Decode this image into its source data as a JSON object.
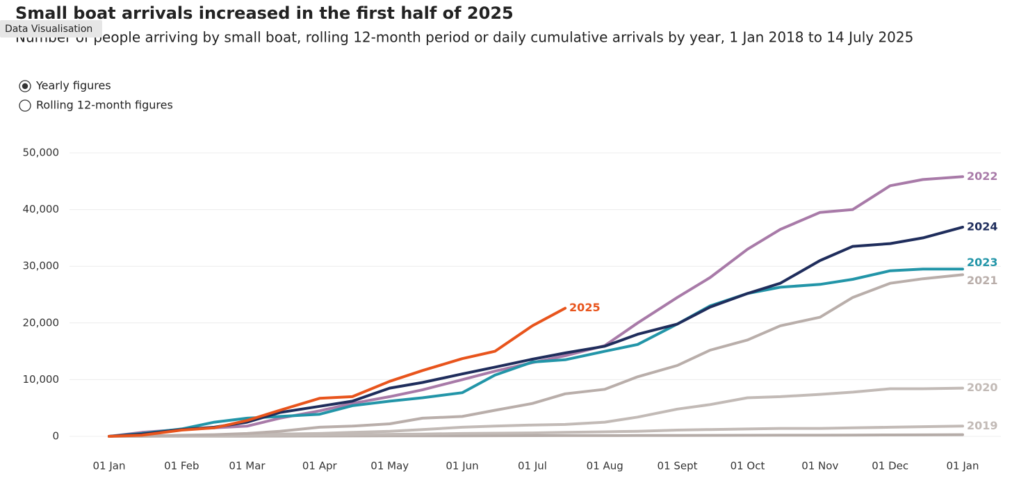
{
  "chart_data": {
    "type": "line",
    "title": "Small boat arrivals increased in the first half of 2025",
    "tag": "Data Visualisation",
    "subtitle": "Number of people arriving by small boat, rolling 12-month period or daily cumulative arrivals by year, 1 Jan 2018 to 14 July 2025",
    "options": [
      "Yearly figures",
      "Rolling 12-month figures"
    ],
    "selected_option": 0,
    "x": [
      0,
      14,
      31,
      45,
      59,
      73,
      90,
      104,
      120,
      134,
      151,
      165,
      181,
      195,
      212,
      226,
      243,
      257,
      273,
      287,
      304,
      318,
      334,
      348,
      365
    ],
    "xlim": [
      0,
      365
    ],
    "xticks": [
      {
        "value": 0,
        "label": "01 Jan"
      },
      {
        "value": 31,
        "label": "01 Feb"
      },
      {
        "value": 59,
        "label": "01 Mar"
      },
      {
        "value": 90,
        "label": "01 Apr"
      },
      {
        "value": 120,
        "label": "01 May"
      },
      {
        "value": 151,
        "label": "01 Jun"
      },
      {
        "value": 181,
        "label": "01 Jul"
      },
      {
        "value": 212,
        "label": "01 Aug"
      },
      {
        "value": 243,
        "label": "01 Sept"
      },
      {
        "value": 273,
        "label": "01 Oct"
      },
      {
        "value": 304,
        "label": "01 Nov"
      },
      {
        "value": 334,
        "label": "01 Dec"
      },
      {
        "value": 365,
        "label": "01 Jan"
      }
    ],
    "ylim": [
      0,
      50000
    ],
    "yticks": [
      0,
      {
        "value": 10000,
        "label": "10,000"
      },
      {
        "value": 20000,
        "label": "20,000"
      },
      {
        "value": 30000,
        "label": "30,000"
      },
      {
        "value": 40000,
        "label": "40,000"
      },
      {
        "value": 50000,
        "label": "50,000"
      }
    ],
    "grid": true,
    "series": [
      {
        "color": "#b5aca8",
        "values": [
          0,
          10,
          20,
          30,
          40,
          50,
          60,
          70,
          80,
          90,
          100,
          110,
          120,
          130,
          140,
          150,
          160,
          170,
          180,
          190,
          200,
          220,
          240,
          260,
          300
        ]
      },
      {
        "name": "2019",
        "color": "#c2bab6",
        "values": [
          0,
          30,
          50,
          100,
          150,
          200,
          250,
          300,
          350,
          400,
          500,
          550,
          600,
          700,
          800,
          900,
          1100,
          1200,
          1300,
          1400,
          1400,
          1500,
          1600,
          1700,
          1800
        ]
      },
      {
        "name": "2020",
        "color": "#c2bab6",
        "values": [
          0,
          50,
          100,
          200,
          300,
          400,
          500,
          700,
          900,
          1200,
          1600,
          1800,
          2000,
          2100,
          2500,
          3400,
          4800,
          5600,
          6800,
          7000,
          7400,
          7800,
          8400,
          8400,
          8500
        ]
      },
      {
        "name": "2021",
        "color": "#b9aeaa",
        "values": [
          0,
          50,
          200,
          300,
          500,
          900,
          1600,
          1800,
          2200,
          3200,
          3500,
          4600,
          5800,
          7500,
          8300,
          10500,
          12500,
          15200,
          17000,
          19500,
          21000,
          24500,
          27000,
          27800,
          28500
        ]
      },
      {
        "name": "2022",
        "color": "#a87aa8",
        "values": [
          0,
          700,
          1200,
          1500,
          1800,
          3200,
          4500,
          5800,
          7000,
          8200,
          10000,
          11500,
          13000,
          14200,
          16000,
          20000,
          24500,
          28000,
          33000,
          36500,
          39500,
          40000,
          44200,
          45300,
          45800
        ]
      },
      {
        "name": "2023",
        "color": "#2295a8",
        "values": [
          0,
          500,
          1300,
          2500,
          3200,
          3500,
          3900,
          5400,
          6200,
          6800,
          7700,
          10800,
          13100,
          13500,
          15000,
          16200,
          19800,
          23000,
          25200,
          26300,
          26800,
          27700,
          29200,
          29500,
          29500
        ]
      },
      {
        "name": "2024",
        "color": "#1f2d5c",
        "values": [
          0,
          400,
          1200,
          1600,
          2500,
          4200,
          5300,
          6200,
          8500,
          9500,
          11000,
          12200,
          13600,
          14700,
          15900,
          18000,
          19800,
          22800,
          25200,
          27000,
          31000,
          33500,
          34000,
          35000,
          36900
        ]
      },
      {
        "name": "2025",
        "color": "#e8541c",
        "values": [
          0,
          200,
          1100,
          1500,
          2800,
          4600,
          6700,
          7000,
          9700,
          11600,
          13700,
          15000,
          19500,
          22600,
          null,
          null,
          null,
          null,
          null,
          null,
          null,
          null,
          null,
          null,
          null
        ]
      }
    ]
  }
}
